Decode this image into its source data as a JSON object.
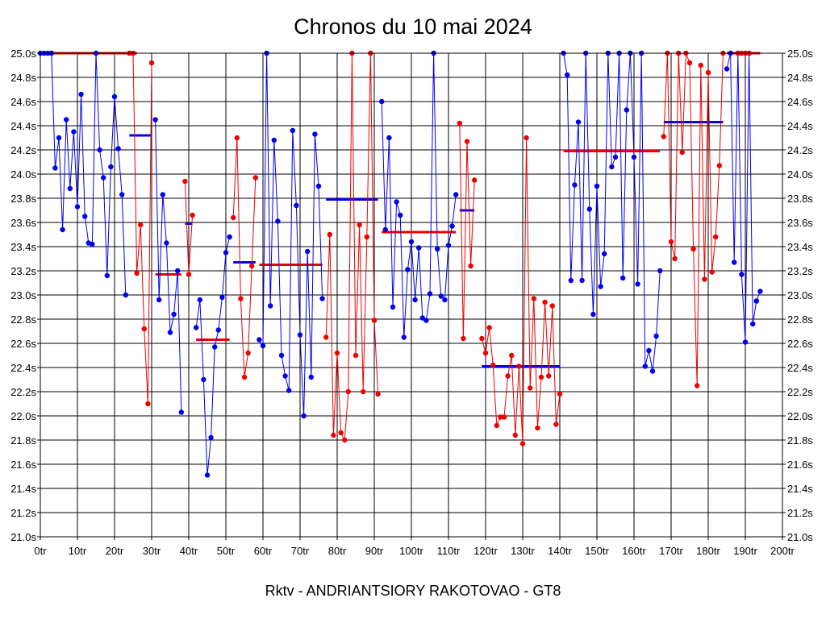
{
  "chart_data": {
    "type": "line",
    "title": "Chronos du 10 mai 2024",
    "xlabel": "Rktv - ANDRIANTSIORY RAKOTOVAO - GT8",
    "ylabel": "",
    "xlim": [
      0,
      200
    ],
    "ylim": [
      21.0,
      25.0
    ],
    "x_ticks": [
      0,
      10,
      20,
      30,
      40,
      50,
      60,
      70,
      80,
      90,
      100,
      110,
      120,
      130,
      140,
      150,
      160,
      170,
      180,
      190,
      200
    ],
    "x_tick_labels": [
      "0tr",
      "10tr",
      "20tr",
      "30tr",
      "40tr",
      "50tr",
      "60tr",
      "70tr",
      "80tr",
      "90tr",
      "100tr",
      "110tr",
      "120tr",
      "130tr",
      "140tr",
      "150tr",
      "160tr",
      "170tr",
      "180tr",
      "190tr",
      "200tr"
    ],
    "y_ticks": [
      21.0,
      21.2,
      21.4,
      21.6,
      21.8,
      22.0,
      22.2,
      22.4,
      22.6,
      22.8,
      23.0,
      23.2,
      23.4,
      23.6,
      23.8,
      24.0,
      24.2,
      24.4,
      24.6,
      24.8,
      25.0
    ],
    "y_tick_labels": [
      "21.0s",
      "21.2s",
      "21.4s",
      "21.6s",
      "21.8s",
      "22.0s",
      "22.2s",
      "22.4s",
      "22.6s",
      "22.8s",
      "23.0s",
      "23.2s",
      "23.4s",
      "23.6s",
      "23.8s",
      "24.0s",
      "24.2s",
      "24.4s",
      "24.6s",
      "24.8s",
      "25.0s"
    ],
    "grid": true,
    "colors": {
      "blue": "#0000ee",
      "red": "#ee0000",
      "axis": "#000000",
      "grid": "#000000"
    },
    "series": [
      {
        "name": "segment-1",
        "color": "blue",
        "x": [
          0,
          1,
          2,
          3,
          4,
          5,
          6,
          7,
          8,
          9,
          10,
          11,
          12,
          13,
          14,
          15,
          16,
          17,
          18,
          19,
          20,
          21,
          22,
          23
        ],
        "values": [
          25.0,
          25.0,
          25.0,
          25.0,
          24.05,
          24.3,
          23.54,
          24.45,
          23.88,
          24.35,
          23.73,
          24.66,
          23.65,
          23.43,
          23.42,
          25.0,
          24.2,
          23.97,
          23.16,
          24.06,
          24.64,
          24.21,
          23.83,
          23.0
        ]
      },
      {
        "name": "segment-2",
        "color": "red",
        "x": [
          24,
          25,
          26,
          27,
          28,
          29,
          30
        ],
        "values": [
          25.0,
          25.0,
          23.18,
          23.58,
          22.72,
          22.1,
          24.92
        ]
      },
      {
        "name": "segment-3",
        "color": "blue",
        "x": [
          31,
          32,
          33,
          34,
          35,
          36,
          37,
          38
        ],
        "values": [
          24.45,
          22.96,
          23.83,
          23.43,
          22.69,
          22.84,
          23.2,
          22.03
        ]
      },
      {
        "name": "segment-4",
        "color": "red",
        "x": [
          39,
          40,
          41
        ],
        "values": [
          23.94,
          23.17,
          23.66
        ]
      },
      {
        "name": "segment-5",
        "color": "blue",
        "x": [
          42,
          43,
          44,
          45,
          46,
          47,
          48,
          49,
          50,
          51
        ],
        "values": [
          22.73,
          22.96,
          22.3,
          21.51,
          21.82,
          22.57,
          22.71,
          22.98,
          23.35,
          23.48
        ]
      },
      {
        "name": "segment-6",
        "color": "red",
        "x": [
          52,
          53,
          54,
          55,
          56,
          57,
          58
        ],
        "values": [
          23.64,
          24.3,
          22.97,
          22.32,
          22.52,
          23.24,
          23.97
        ]
      },
      {
        "name": "segment-7",
        "color": "blue",
        "x": [
          59,
          60,
          61,
          62,
          63,
          64,
          65,
          66,
          67,
          68,
          69,
          70,
          71,
          72,
          73,
          74,
          75,
          76
        ],
        "values": [
          22.63,
          22.58,
          25.0,
          22.91,
          24.28,
          23.61,
          22.5,
          22.33,
          22.21,
          24.36,
          23.74,
          22.67,
          22.0,
          23.36,
          22.32,
          24.33,
          23.9,
          22.97
        ]
      },
      {
        "name": "segment-8",
        "color": "red",
        "x": [
          77,
          78,
          79,
          80,
          81,
          82,
          83,
          84,
          85,
          86,
          87,
          88,
          89,
          90,
          91
        ],
        "values": [
          22.65,
          23.5,
          21.84,
          22.52,
          21.86,
          21.8,
          22.2,
          25.0,
          22.5,
          23.58,
          22.2,
          23.48,
          25.0,
          22.79,
          22.18
        ]
      },
      {
        "name": "segment-9",
        "color": "blue",
        "x": [
          92,
          93,
          94,
          95,
          96,
          97,
          98,
          99,
          100,
          101,
          102,
          103,
          104,
          105,
          106,
          107,
          108,
          109,
          110,
          111,
          112
        ],
        "values": [
          24.6,
          23.54,
          24.3,
          22.9,
          23.77,
          23.66,
          22.65,
          23.21,
          23.44,
          22.96,
          23.39,
          22.81,
          22.79,
          23.01,
          25.0,
          23.38,
          22.99,
          22.96,
          23.41,
          23.57,
          23.83
        ]
      },
      {
        "name": "segment-10",
        "color": "red",
        "x": [
          113,
          114,
          115,
          116,
          117
        ],
        "values": [
          24.42,
          22.64,
          24.27,
          23.24,
          23.95
        ]
      },
      {
        "name": "segment-11",
        "color": "red",
        "x": [
          119,
          120,
          121,
          122,
          123,
          124,
          125,
          126,
          127,
          128,
          129,
          130,
          131,
          132,
          133,
          134,
          135,
          136,
          137,
          138,
          139,
          140
        ],
        "values": [
          22.64,
          22.52,
          22.73,
          22.42,
          21.92,
          21.99,
          21.99,
          22.33,
          22.5,
          21.84,
          22.41,
          21.77,
          24.3,
          22.23,
          22.97,
          21.9,
          22.32,
          22.94,
          22.33,
          22.91,
          21.93,
          22.18
        ]
      },
      {
        "name": "segment-12",
        "color": "blue",
        "x": [
          141,
          142,
          143,
          144,
          145,
          146,
          147,
          148,
          149,
          150,
          151,
          152,
          153,
          154,
          155,
          156,
          157,
          158,
          159,
          160,
          161,
          162,
          163,
          164,
          165,
          166,
          167
        ],
        "values": [
          25.0,
          24.82,
          23.12,
          23.91,
          24.43,
          23.12,
          25.0,
          23.71,
          22.84,
          23.9,
          23.07,
          23.34,
          25.0,
          24.06,
          24.14,
          25.0,
          23.14,
          24.53,
          25.0,
          24.14,
          23.09,
          25.0,
          22.41,
          22.54,
          22.37,
          22.66,
          23.2
        ]
      },
      {
        "name": "segment-13",
        "color": "red",
        "x": [
          168,
          169,
          170,
          171,
          172,
          173,
          174,
          175,
          176,
          177,
          178,
          179,
          180,
          181,
          182,
          183,
          184
        ],
        "values": [
          24.31,
          25.0,
          23.44,
          23.3,
          25.0,
          24.18,
          25.0,
          24.92,
          23.38,
          22.25,
          24.9,
          23.13,
          24.84,
          23.19,
          23.48,
          24.07,
          25.0
        ]
      },
      {
        "name": "segment-14",
        "color": "blue",
        "x": [
          185,
          186,
          187,
          188,
          189,
          190,
          191,
          192,
          193
        ],
        "values": [
          24.87,
          25.0,
          23.27,
          25.0,
          23.17,
          22.61,
          25.0,
          22.76,
          22.95
        ]
      },
      {
        "name": "segment-15",
        "color": "red",
        "x": [
          188,
          189,
          190,
          191
        ],
        "values": [
          25.0,
          25.0,
          25.0,
          25.0
        ]
      },
      {
        "name": "segment-16",
        "color": "blue",
        "x": [
          193,
          194
        ],
        "values": [
          22.95,
          23.03
        ]
      }
    ],
    "averages": [
      {
        "color": "red",
        "x_start": 3,
        "x_end": 26,
        "value": 25.0
      },
      {
        "color": "blue",
        "x_start": 24,
        "x_end": 30,
        "value": 24.32
      },
      {
        "color": "red",
        "x_start": 31,
        "x_end": 38,
        "value": 23.17
      },
      {
        "color": "blue",
        "x_start": 39,
        "x_end": 41,
        "value": 23.59
      },
      {
        "color": "red",
        "x_start": 42,
        "x_end": 51,
        "value": 22.63
      },
      {
        "color": "blue",
        "x_start": 52,
        "x_end": 58,
        "value": 23.27
      },
      {
        "color": "red",
        "x_start": 59,
        "x_end": 76,
        "value": 23.25
      },
      {
        "color": "blue",
        "x_start": 77,
        "x_end": 91,
        "value": 23.79
      },
      {
        "color": "red",
        "x_start": 92,
        "x_end": 112,
        "value": 23.52
      },
      {
        "color": "blue",
        "x_start": 113,
        "x_end": 117,
        "value": 23.7
      },
      {
        "color": "blue",
        "x_start": 119,
        "x_end": 140,
        "value": 22.41
      },
      {
        "color": "red",
        "x_start": 141,
        "x_end": 167,
        "value": 24.19
      },
      {
        "color": "blue",
        "x_start": 168,
        "x_end": 184,
        "value": 24.43
      },
      {
        "color": "red",
        "x_start": 185,
        "x_end": 194,
        "value": 25.0
      }
    ]
  }
}
